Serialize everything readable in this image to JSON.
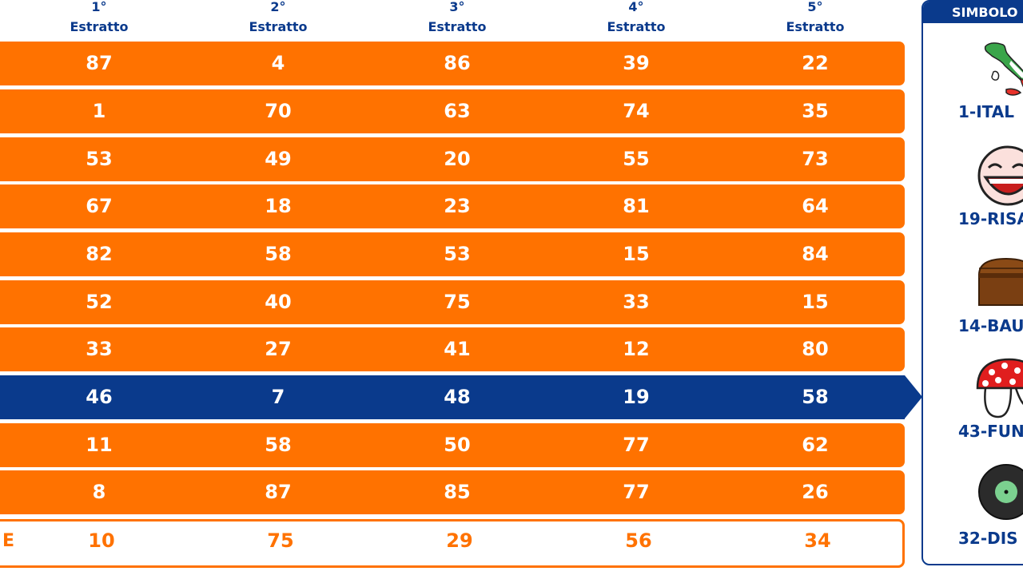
{
  "columns": [
    {
      "ordinal": "1°",
      "label": "Estratto"
    },
    {
      "ordinal": "2°",
      "label": "Estratto"
    },
    {
      "ordinal": "3°",
      "label": "Estratto"
    },
    {
      "ordinal": "4°",
      "label": "Estratto"
    },
    {
      "ordinal": "5°",
      "label": "Estratto"
    }
  ],
  "rows": [
    {
      "values": [
        "87",
        "4",
        "86",
        "39",
        "22"
      ],
      "style": "normal"
    },
    {
      "values": [
        "1",
        "70",
        "63",
        "74",
        "35"
      ],
      "style": "normal"
    },
    {
      "values": [
        "53",
        "49",
        "20",
        "55",
        "73"
      ],
      "style": "normal"
    },
    {
      "values": [
        "67",
        "18",
        "23",
        "81",
        "64"
      ],
      "style": "normal"
    },
    {
      "values": [
        "82",
        "58",
        "53",
        "15",
        "84"
      ],
      "style": "normal"
    },
    {
      "values": [
        "52",
        "40",
        "75",
        "33",
        "15"
      ],
      "style": "normal"
    },
    {
      "values": [
        "33",
        "27",
        "41",
        "12",
        "80"
      ],
      "style": "normal"
    },
    {
      "values": [
        "46",
        "7",
        "48",
        "19",
        "58"
      ],
      "style": "active"
    },
    {
      "values": [
        "11",
        "58",
        "50",
        "77",
        "62"
      ],
      "style": "normal"
    },
    {
      "values": [
        "8",
        "87",
        "85",
        "77",
        "26"
      ],
      "style": "normal"
    },
    {
      "label": "E",
      "values": [
        "10",
        "75",
        "29",
        "56",
        "34"
      ],
      "style": "outline"
    }
  ],
  "side_panel": {
    "title": "SIMBOLO",
    "symbols": [
      {
        "name": "1-ITAL",
        "icon": "italy-map-icon"
      },
      {
        "name": "19-RISA",
        "icon": "laughing-face-icon"
      },
      {
        "name": "14-BAU",
        "icon": "chest-icon"
      },
      {
        "name": "43-FUN",
        "icon": "mushroom-icon"
      },
      {
        "name": "32-DIS",
        "icon": "vinyl-record-icon"
      }
    ]
  },
  "colors": {
    "orange": "#ff7200",
    "blue": "#0a3a8c",
    "white": "#ffffff"
  }
}
